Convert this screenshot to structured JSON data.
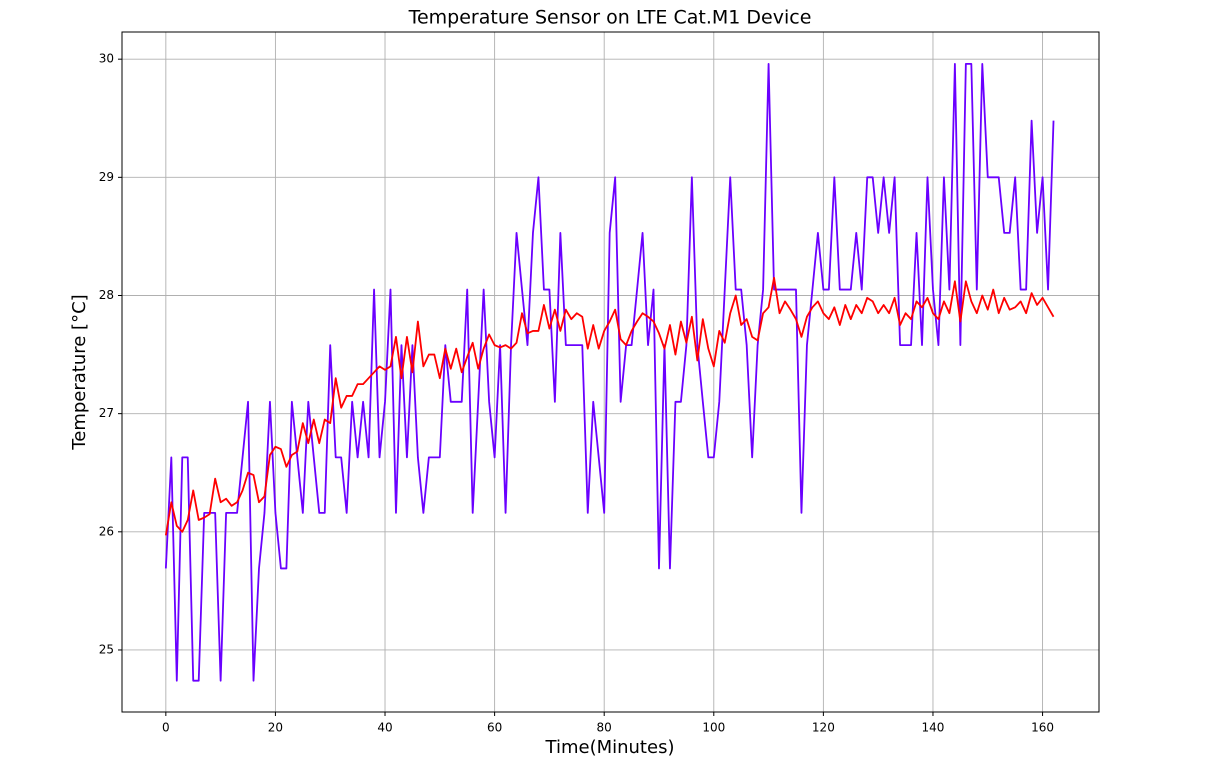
{
  "chart_data": {
    "type": "line",
    "title": "Temperature Sensor on LTE Cat.M1 Device",
    "xlabel": "Time(Minutes)",
    "ylabel": "Temperature [°C]",
    "x": [
      0,
      1,
      2,
      3,
      4,
      5,
      6,
      7,
      8,
      9,
      10,
      11,
      12,
      13,
      14,
      15,
      16,
      17,
      18,
      19,
      20,
      21,
      22,
      23,
      24,
      25,
      26,
      27,
      28,
      29,
      30,
      31,
      32,
      33,
      34,
      35,
      36,
      37,
      38,
      39,
      40,
      41,
      42,
      43,
      44,
      45,
      46,
      47,
      48,
      49,
      50,
      51,
      52,
      53,
      54,
      55,
      56,
      57,
      58,
      59,
      60,
      61,
      62,
      63,
      64,
      65,
      66,
      67,
      68,
      69,
      70,
      71,
      72,
      73,
      74,
      75,
      76,
      77,
      78,
      79,
      80,
      81,
      82,
      83,
      84,
      85,
      86,
      87,
      88,
      89,
      90,
      91,
      92,
      93,
      94,
      95,
      96,
      97,
      98,
      99,
      100,
      101,
      102,
      103,
      104,
      105,
      106,
      107,
      108,
      109,
      110,
      111,
      112,
      113,
      114,
      115,
      116,
      117,
      118,
      119,
      120,
      121,
      122,
      123,
      124,
      125,
      126,
      127,
      128,
      129,
      130,
      131,
      132,
      133,
      134,
      135,
      136,
      137,
      138,
      139,
      140,
      141,
      142,
      143,
      144,
      145,
      146,
      147,
      148,
      149,
      150,
      151,
      152,
      153,
      154,
      155,
      156,
      157,
      158,
      159,
      160,
      161,
      162
    ],
    "series": [
      {
        "color": "#6a00ff",
        "values": [
          25.69,
          26.63,
          24.74,
          26.63,
          26.63,
          24.74,
          24.74,
          26.16,
          26.16,
          26.16,
          24.74,
          26.16,
          26.16,
          26.16,
          26.63,
          27.1,
          24.74,
          25.69,
          26.16,
          27.1,
          26.16,
          25.69,
          25.69,
          27.1,
          26.63,
          26.16,
          27.1,
          26.63,
          26.16,
          26.16,
          27.58,
          26.63,
          26.63,
          26.16,
          27.1,
          26.63,
          27.1,
          26.63,
          28.05,
          26.63,
          27.1,
          28.05,
          26.16,
          27.58,
          26.63,
          27.58,
          26.63,
          26.16,
          26.63,
          26.63,
          26.63,
          27.58,
          27.1,
          27.1,
          27.1,
          28.05,
          26.16,
          27.1,
          28.05,
          27.1,
          26.63,
          27.58,
          26.16,
          27.58,
          28.53,
          28.05,
          27.58,
          28.53,
          29.0,
          28.05,
          28.05,
          27.1,
          28.53,
          27.58,
          27.58,
          27.58,
          27.58,
          26.16,
          27.1,
          26.63,
          26.16,
          28.53,
          29.0,
          27.1,
          27.58,
          27.58,
          28.05,
          28.53,
          27.58,
          28.05,
          25.69,
          27.58,
          25.69,
          27.1,
          27.1,
          27.58,
          29.0,
          27.58,
          27.1,
          26.63,
          26.63,
          27.1,
          28.05,
          29.0,
          28.05,
          28.05,
          27.58,
          26.63,
          27.58,
          28.05,
          29.96,
          28.05,
          28.05,
          28.05,
          28.05,
          28.05,
          26.16,
          27.58,
          28.05,
          28.53,
          28.05,
          28.05,
          29.0,
          28.05,
          28.05,
          28.05,
          28.53,
          28.05,
          29.0,
          29.0,
          28.53,
          29.0,
          28.53,
          29.0,
          27.58,
          27.58,
          27.58,
          28.53,
          27.58,
          29.0,
          28.05,
          27.58,
          29.0,
          28.05,
          29.96,
          27.58,
          29.96,
          29.96,
          28.05,
          29.96,
          29.0,
          29.0,
          29.0,
          28.53,
          28.53,
          29.0,
          28.05,
          28.05,
          29.48,
          28.53,
          29.0,
          28.05,
          29.48
        ]
      },
      {
        "color": "#ff0000",
        "values": [
          25.97,
          26.25,
          26.05,
          26.0,
          26.1,
          26.35,
          26.1,
          26.12,
          26.15,
          26.45,
          26.25,
          26.28,
          26.22,
          26.25,
          26.35,
          26.5,
          26.48,
          26.25,
          26.3,
          26.65,
          26.72,
          26.7,
          26.55,
          26.65,
          26.68,
          26.92,
          26.75,
          26.95,
          26.75,
          26.95,
          26.92,
          27.3,
          27.05,
          27.15,
          27.15,
          27.25,
          27.25,
          27.3,
          27.35,
          27.4,
          27.37,
          27.4,
          27.65,
          27.3,
          27.65,
          27.35,
          27.78,
          27.4,
          27.5,
          27.5,
          27.3,
          27.55,
          27.38,
          27.55,
          27.35,
          27.48,
          27.6,
          27.38,
          27.55,
          27.67,
          27.58,
          27.56,
          27.58,
          27.55,
          27.6,
          27.85,
          27.68,
          27.7,
          27.7,
          27.92,
          27.72,
          27.88,
          27.7,
          27.88,
          27.8,
          27.85,
          27.82,
          27.55,
          27.75,
          27.55,
          27.7,
          27.78,
          27.88,
          27.63,
          27.58,
          27.7,
          27.78,
          27.85,
          27.82,
          27.78,
          27.68,
          27.55,
          27.75,
          27.5,
          27.78,
          27.6,
          27.82,
          27.45,
          27.8,
          27.55,
          27.4,
          27.7,
          27.6,
          27.85,
          28.0,
          27.75,
          27.8,
          27.65,
          27.62,
          27.85,
          27.9,
          28.15,
          27.85,
          27.95,
          27.88,
          27.8,
          27.65,
          27.82,
          27.9,
          27.95,
          27.85,
          27.8,
          27.9,
          27.75,
          27.92,
          27.8,
          27.92,
          27.85,
          27.98,
          27.95,
          27.85,
          27.92,
          27.85,
          27.98,
          27.75,
          27.85,
          27.8,
          27.95,
          27.9,
          27.98,
          27.85,
          27.8,
          27.95,
          27.85,
          28.12,
          27.78,
          28.12,
          27.95,
          27.85,
          28.0,
          27.88,
          28.05,
          27.85,
          27.98,
          27.88,
          27.9,
          27.95,
          27.85,
          28.02,
          27.92,
          27.98,
          27.9,
          27.82
        ]
      }
    ],
    "xlim": [
      -8,
      170.3
    ],
    "ylim": [
      24.475,
      30.23
    ],
    "xticks": [
      0,
      20,
      40,
      60,
      80,
      100,
      120,
      140,
      160
    ],
    "yticks": [
      25,
      26,
      27,
      28,
      29,
      30
    ],
    "grid": true
  }
}
